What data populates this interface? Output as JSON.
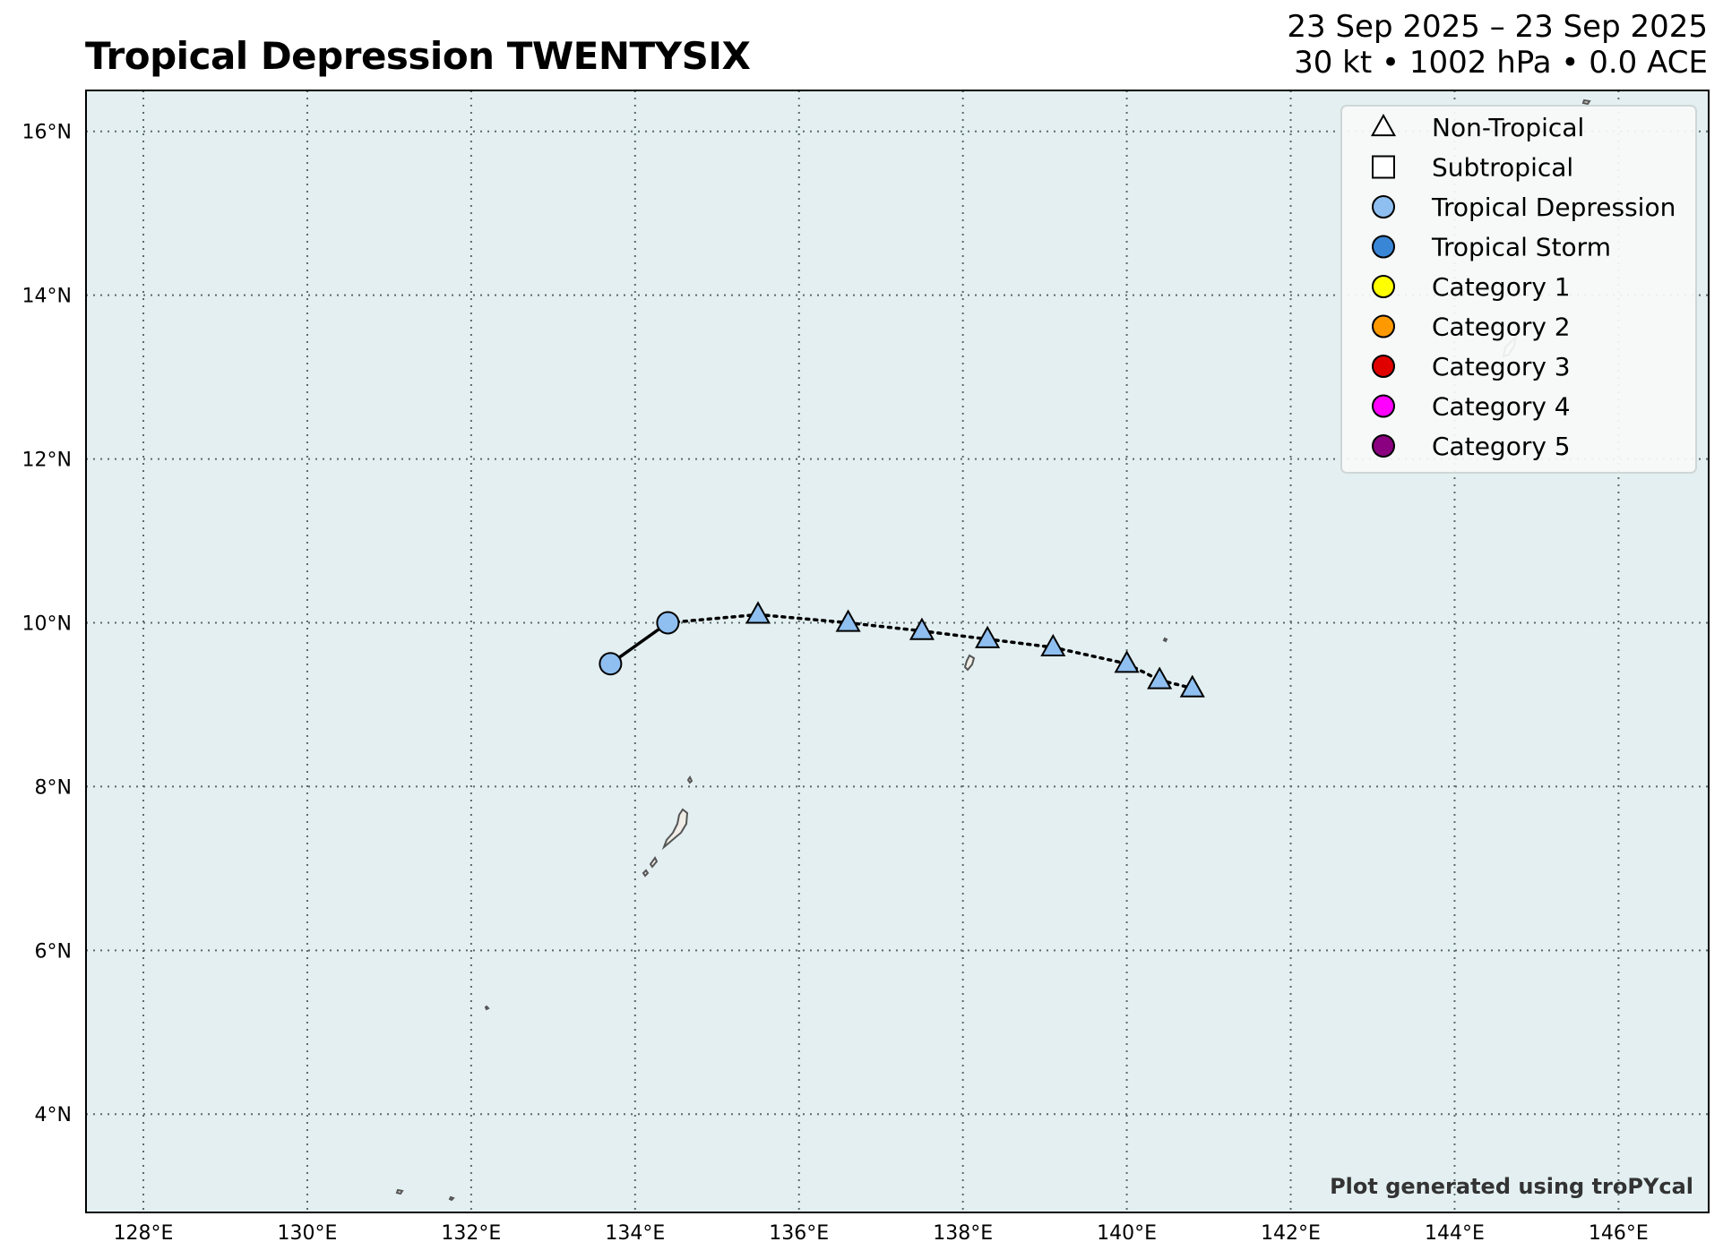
{
  "header": {
    "title": "Tropical Depression TWENTYSIX",
    "dates": "23 Sep 2025 – 23 Sep 2025",
    "stats": "30 kt • 1002 hPa • 0.0 ACE"
  },
  "credit": "Plot generated using troPYcal",
  "colors": {
    "ocean": "#e3eff1",
    "land": "#f0ede6",
    "gridline": "#5a6a6a",
    "tropical_depression": "#8fbff0",
    "tropical_storm": "#3a86d6",
    "category_1": "#ffff00",
    "category_2": "#ff9900",
    "category_3": "#e00000",
    "category_4": "#ff00ff",
    "category_5": "#8b0080"
  },
  "legend": [
    {
      "label": "Non-Tropical",
      "symbol": "triangle",
      "color": "#ffffff"
    },
    {
      "label": "Subtropical",
      "symbol": "square",
      "color": "#ffffff"
    },
    {
      "label": "Tropical Depression",
      "symbol": "circle",
      "color": "#8fbff0"
    },
    {
      "label": "Tropical Storm",
      "symbol": "circle",
      "color": "#3a86d6"
    },
    {
      "label": "Category 1",
      "symbol": "circle",
      "color": "#ffff00"
    },
    {
      "label": "Category 2",
      "symbol": "circle",
      "color": "#ff9900"
    },
    {
      "label": "Category 3",
      "symbol": "circle",
      "color": "#e00000"
    },
    {
      "label": "Category 4",
      "symbol": "circle",
      "color": "#ff00ff"
    },
    {
      "label": "Category 5",
      "symbol": "circle",
      "color": "#8b0080"
    }
  ],
  "chart_data": {
    "type": "scatter",
    "lon_range": [
      127.3,
      147.1
    ],
    "lat_range": [
      2.8,
      16.5
    ],
    "x_ticks": [
      128,
      130,
      132,
      134,
      136,
      138,
      140,
      142,
      144,
      146
    ],
    "x_tick_labels": [
      "128°E",
      "130°E",
      "132°E",
      "134°E",
      "136°E",
      "138°E",
      "140°E",
      "142°E",
      "144°E",
      "146°E"
    ],
    "y_ticks": [
      4,
      6,
      8,
      10,
      12,
      14,
      16
    ],
    "y_tick_labels": [
      "4°N",
      "6°N",
      "8°N",
      "10°N",
      "12°N",
      "14°N",
      "16°N"
    ],
    "grid": true,
    "legend_position": "top-right",
    "track": [
      {
        "lon": 133.7,
        "lat": 9.5,
        "type": "tropical",
        "intensity": "Tropical Depression"
      },
      {
        "lon": 134.4,
        "lat": 10.0,
        "type": "tropical",
        "intensity": "Tropical Depression"
      },
      {
        "lon": 135.5,
        "lat": 10.1,
        "type": "non-tropical",
        "intensity": "Tropical Depression"
      },
      {
        "lon": 136.6,
        "lat": 10.0,
        "type": "non-tropical",
        "intensity": "Tropical Depression"
      },
      {
        "lon": 137.5,
        "lat": 9.9,
        "type": "non-tropical",
        "intensity": "Tropical Depression"
      },
      {
        "lon": 138.3,
        "lat": 9.8,
        "type": "non-tropical",
        "intensity": "Tropical Depression"
      },
      {
        "lon": 139.1,
        "lat": 9.7,
        "type": "non-tropical",
        "intensity": "Tropical Depression"
      },
      {
        "lon": 140.0,
        "lat": 9.5,
        "type": "non-tropical",
        "intensity": "Tropical Depression"
      },
      {
        "lon": 140.4,
        "lat": 9.3,
        "type": "non-tropical",
        "intensity": "Tropical Depression"
      },
      {
        "lon": 140.8,
        "lat": 9.2,
        "type": "non-tropical",
        "intensity": "Tropical Depression"
      }
    ]
  }
}
